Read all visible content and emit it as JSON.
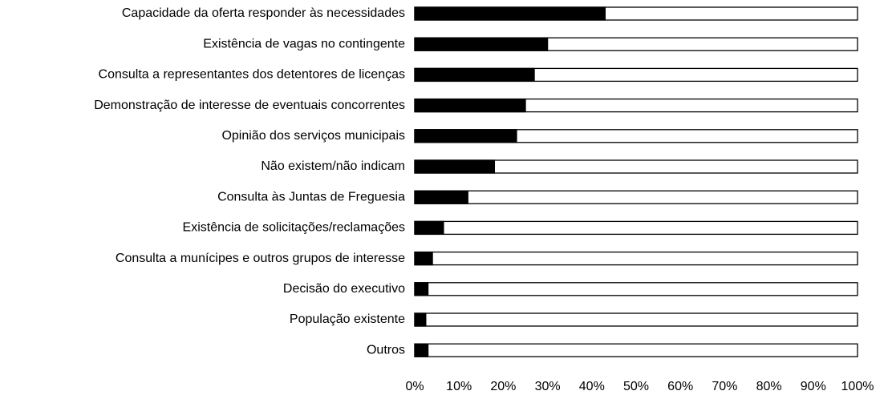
{
  "chart_data": {
    "type": "bar",
    "orientation": "horizontal",
    "categories": [
      "Capacidade da oferta responder às necessidades",
      "Existência de vagas no contingente",
      "Consulta a representantes dos detentores de licenças",
      "Demonstração de interesse de eventuais concorrentes",
      "Opinião dos serviços municipais",
      "Não existem/não indicam",
      "Consulta às Juntas de Freguesia",
      "Existência de solicitações/reclamações",
      "Consulta a munícipes e outros grupos de interesse",
      "Decisão do executivo",
      "População existente",
      "Outros"
    ],
    "values": [
      43,
      30,
      27,
      25,
      23,
      18,
      12,
      6.5,
      4,
      3,
      2.5,
      3
    ],
    "color": "#000000",
    "xlim": [
      0,
      100
    ],
    "xticks": [
      {
        "value": 0,
        "label": "0%"
      },
      {
        "value": 10,
        "label": "10%"
      },
      {
        "value": 20,
        "label": "20%"
      },
      {
        "value": 30,
        "label": "30%"
      },
      {
        "value": 40,
        "label": "40%"
      },
      {
        "value": 50,
        "label": "50%"
      },
      {
        "value": 60,
        "label": "60%"
      },
      {
        "value": 70,
        "label": "70%"
      },
      {
        "value": 80,
        "label": "80%"
      },
      {
        "value": 90,
        "label": "90%"
      },
      {
        "value": 100,
        "label": "100%"
      }
    ],
    "grid": false
  }
}
